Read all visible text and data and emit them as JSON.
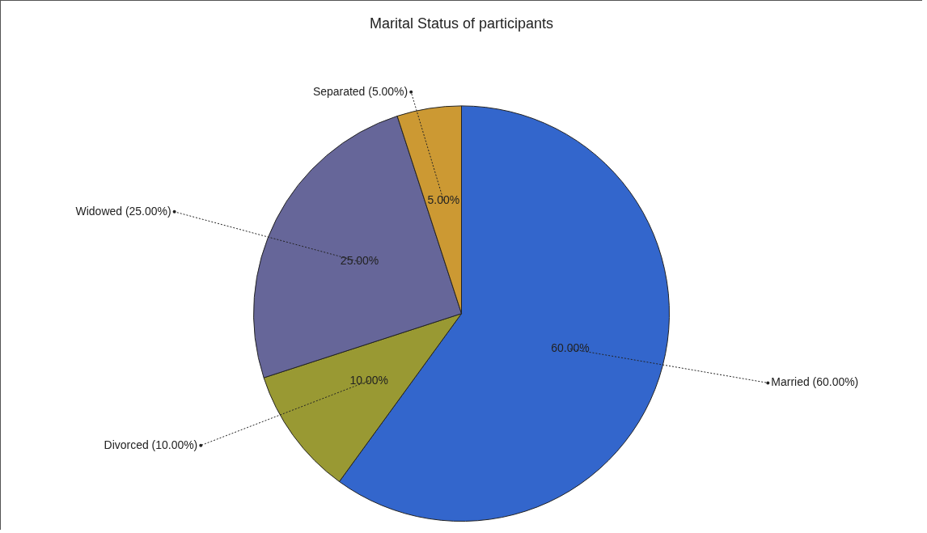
{
  "chart_data": {
    "type": "pie",
    "title": "Marital Status of participants",
    "categories": [
      "Married (60.00%)",
      "Divorced (10.00%)",
      "Widowed (25.00%)",
      "Separated (5.00%)"
    ],
    "values": [
      60,
      10,
      25,
      5
    ],
    "value_labels": [
      "60.00%",
      "10.00%",
      "25.00%",
      "5.00%"
    ],
    "colors": [
      "#3366cc",
      "#999933",
      "#666699",
      "#cc9933"
    ],
    "legend": false
  }
}
